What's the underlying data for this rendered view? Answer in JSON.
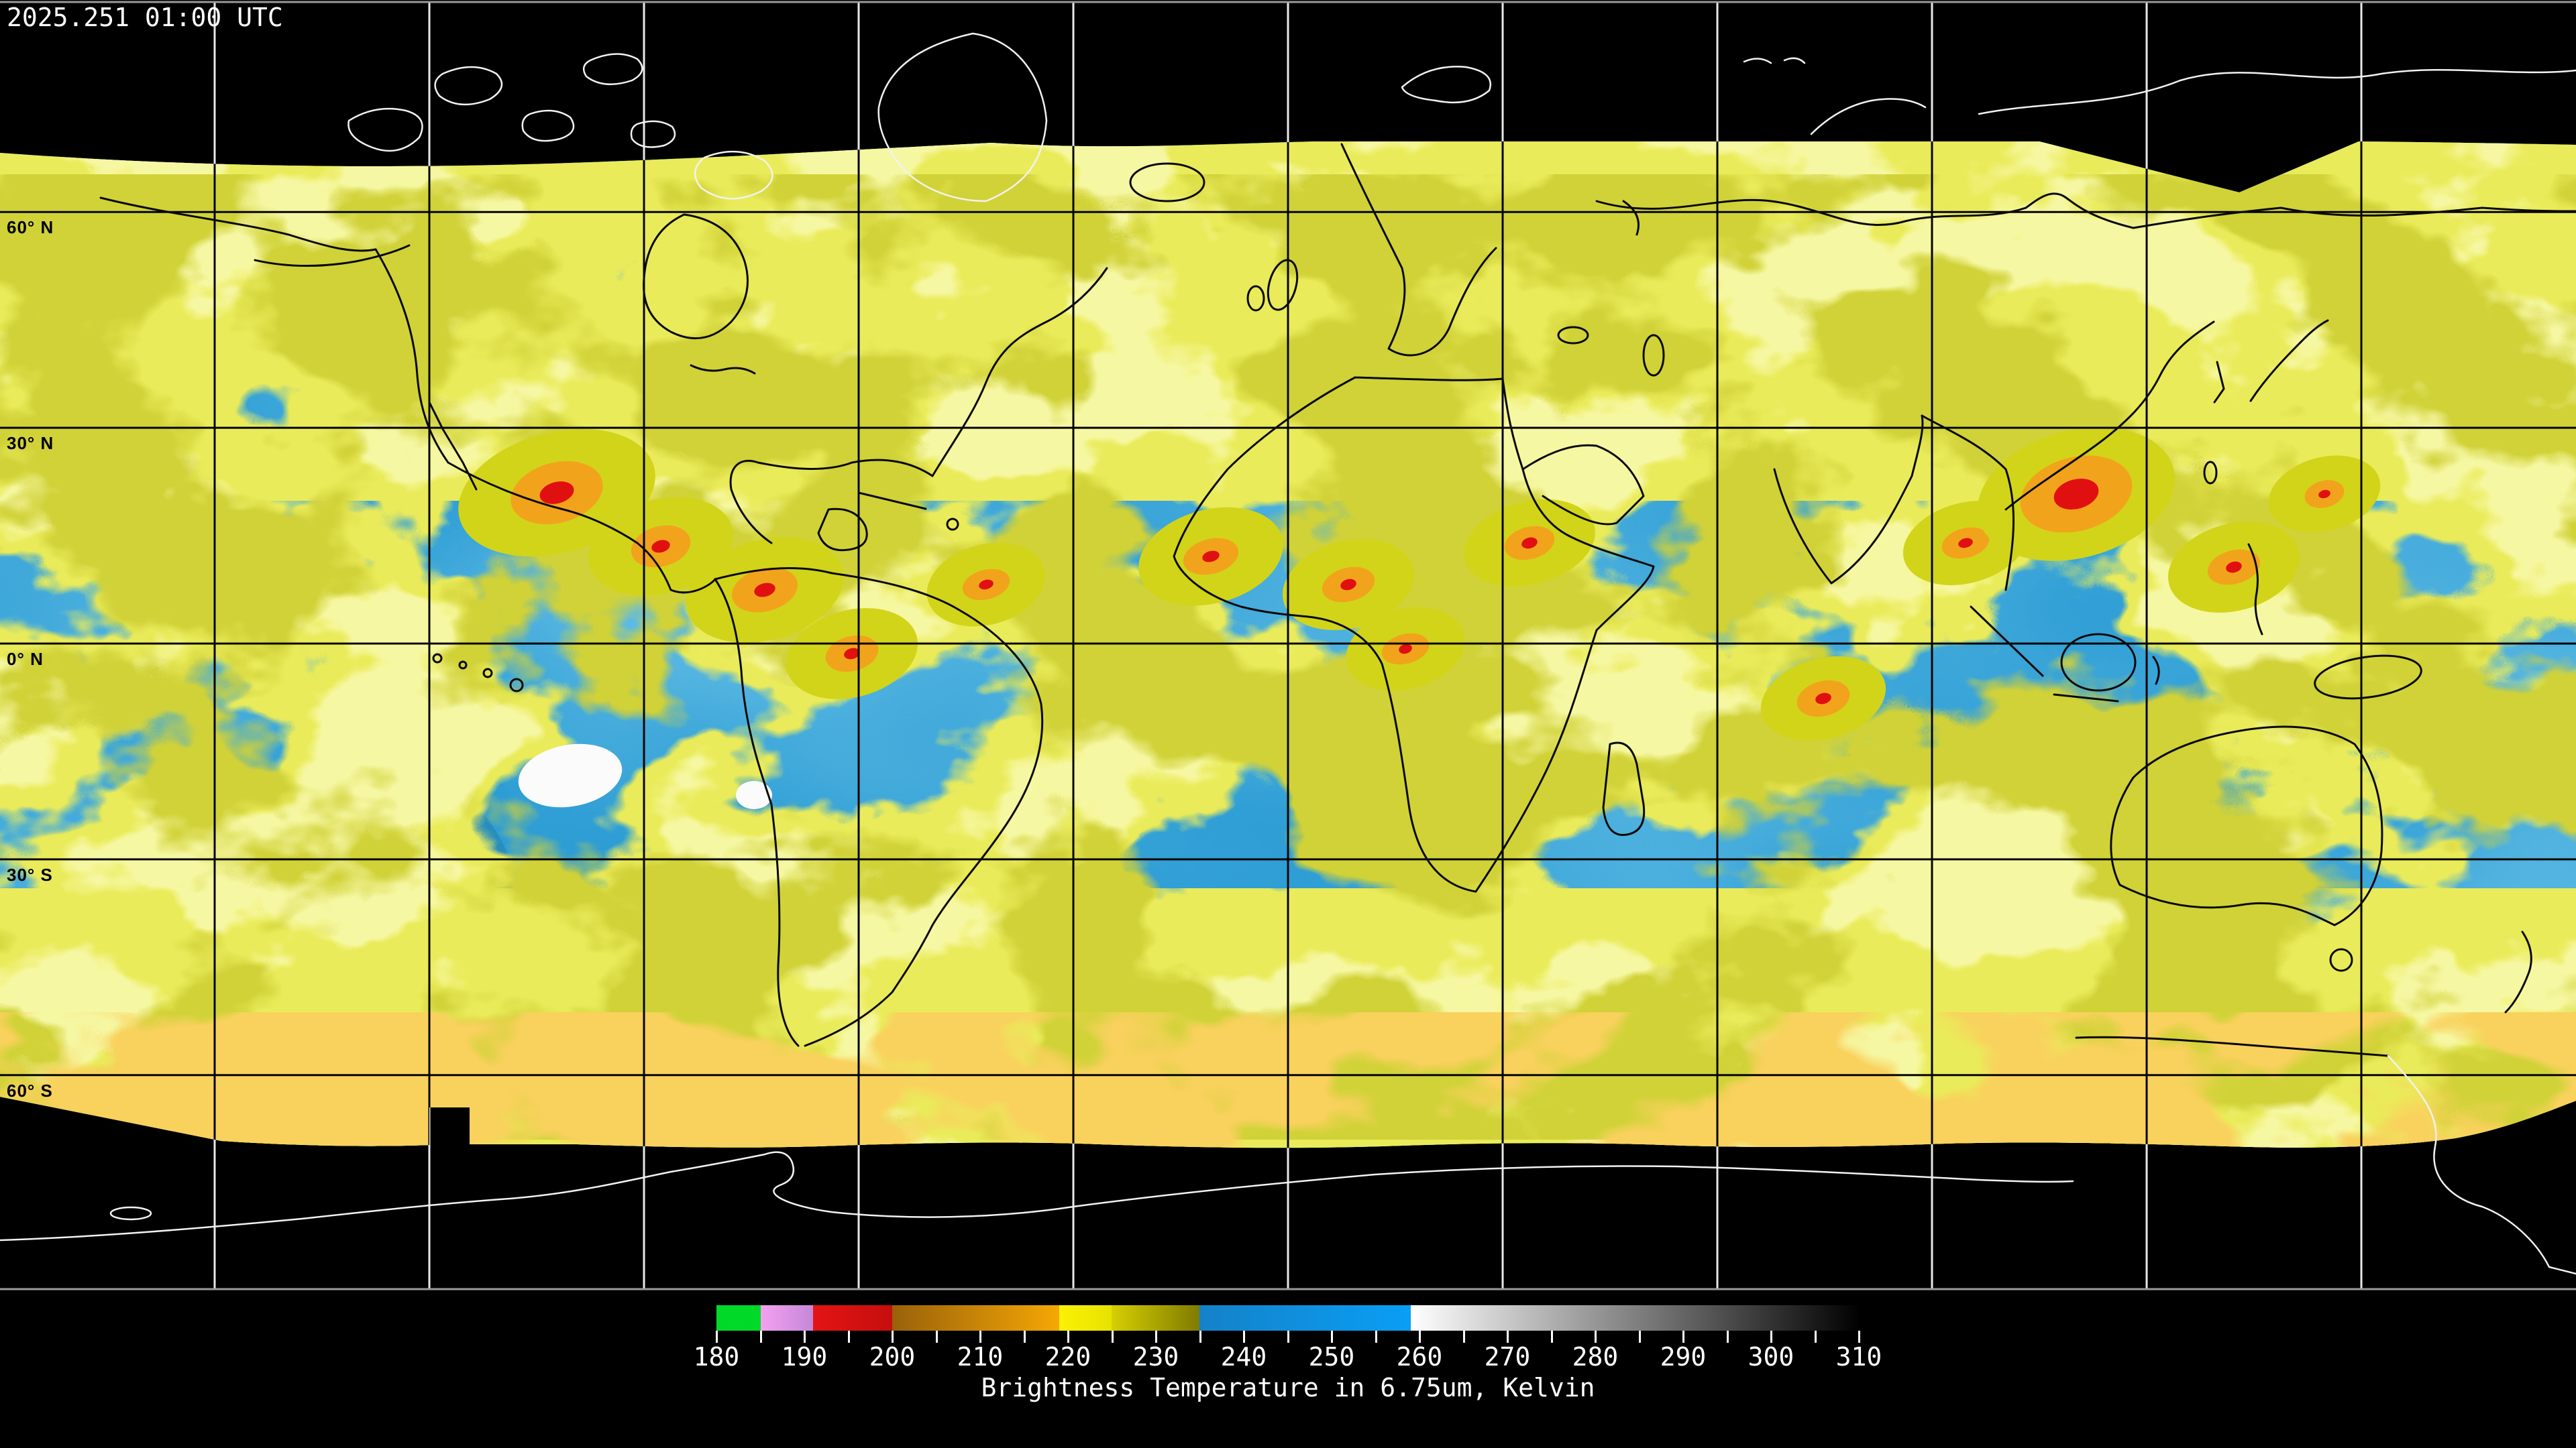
{
  "header": {
    "timestamp": "2025.251 01:00 UTC"
  },
  "map": {
    "latitude_labels": [
      {
        "label": "60° N",
        "lat": 60
      },
      {
        "label": "30° N",
        "lat": 30
      },
      {
        "label": "0° N",
        "lat": 0
      },
      {
        "label": "30° S",
        "lat": -30
      },
      {
        "label": "60° S",
        "lat": -60
      }
    ],
    "graticule": {
      "lon_step_deg": 30,
      "lat_step_deg": 30
    }
  },
  "colorbar": {
    "caption": "Brightness Temperature in 6.75um, Kelvin",
    "min": 180,
    "max": 310,
    "major_tick_step": 10,
    "minor_tick_step": 5,
    "tick_labels": [
      "180",
      "190",
      "200",
      "210",
      "220",
      "230",
      "240",
      "250",
      "260",
      "270",
      "280",
      "290",
      "300",
      "310"
    ],
    "segments": [
      {
        "from": 180,
        "to": 185,
        "color": "#00d928",
        "color2": null
      },
      {
        "from": 185,
        "to": 191,
        "color": "#f5a0f0",
        "color2": "#c488d8"
      },
      {
        "from": 191,
        "to": 200,
        "color": "#e31414",
        "color2": "#c60e0e"
      },
      {
        "from": 200,
        "to": 219,
        "color": "#99610a",
        "color2": "#f5a705"
      },
      {
        "from": 219,
        "to": 225,
        "color": "#faf202",
        "color2": "#e8e202"
      },
      {
        "from": 225,
        "to": 235,
        "color": "#d6cf02",
        "color2": "#7f7b00"
      },
      {
        "from": 235,
        "to": 259,
        "color": "#1482c8",
        "color2": "#0a9ef5"
      },
      {
        "from": 259,
        "to": 310,
        "color": "#ffffff",
        "color2": "#010101"
      }
    ]
  },
  "colors": {
    "background": "#000000",
    "ocean_blue": "#1b92cf",
    "ocean_light": "#3fa9de",
    "cloud_yellow": "#d2d41a",
    "cloud_highlight": "#ecee5c",
    "cloud_olive": "#a2a40a",
    "cloud_orange": "#f2a31c",
    "convective_red": "#e01010",
    "cold_cloud_white": "#fbfbfb",
    "coastline_dark": "#0a0a0a",
    "coastline_light": "#f2f2f2",
    "graticule_light": "#e8e8e8",
    "graticule_dark": "#050505",
    "frame_gray": "#9a9a9a",
    "text_white": "#ffffff",
    "text_black": "#000000"
  }
}
